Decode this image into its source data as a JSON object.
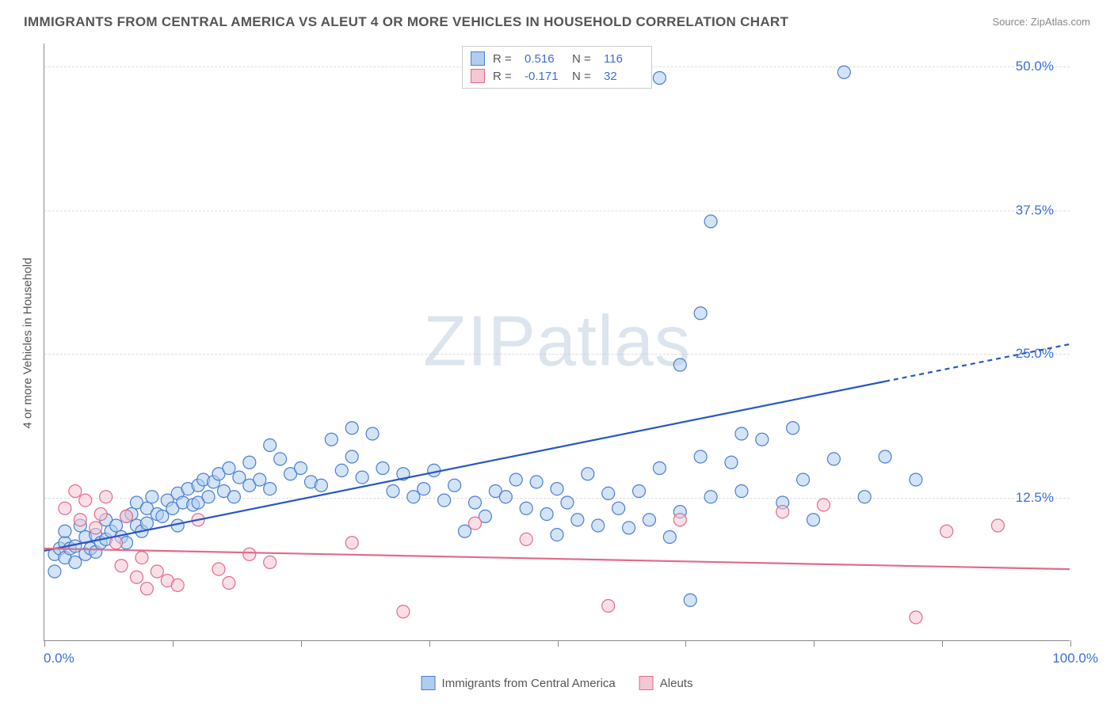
{
  "title": "IMMIGRANTS FROM CENTRAL AMERICA VS ALEUT 4 OR MORE VEHICLES IN HOUSEHOLD CORRELATION CHART",
  "source": "Source: ZipAtlas.com",
  "watermark_bold": "ZIP",
  "watermark_thin": "atlas",
  "ylabel": "4 or more Vehicles in Household",
  "chart": {
    "type": "scatter",
    "xlim": [
      0,
      100
    ],
    "ylim": [
      0,
      52
    ],
    "xtick_min_label": "0.0%",
    "xtick_max_label": "100.0%",
    "xtick_positions": [
      0,
      12.5,
      25,
      37.5,
      50,
      62.5,
      75,
      87.5,
      100
    ],
    "yticks": [
      {
        "v": 12.5,
        "label": "12.5%"
      },
      {
        "v": 25.0,
        "label": "25.0%"
      },
      {
        "v": 37.5,
        "label": "37.5%"
      },
      {
        "v": 50.0,
        "label": "50.0%"
      }
    ],
    "background_color": "#ffffff",
    "grid_color": "#dddddd",
    "series": [
      {
        "name": "Immigrants from Central America",
        "swatch_fill": "#afcdef",
        "swatch_stroke": "#4b7ecf",
        "marker_fill": "#afcdef",
        "marker_stroke": "#4b7ecf",
        "marker_fill_opacity": 0.55,
        "marker_radius": 8,
        "R": "0.516",
        "N": "116",
        "trend": {
          "x1": 0,
          "y1": 7.8,
          "x2": 100,
          "y2": 25.8,
          "solid_until_x": 82,
          "color": "#2857c5",
          "width": 2.2
        },
        "points": [
          [
            1,
            7.5
          ],
          [
            1,
            6
          ],
          [
            1.5,
            8
          ],
          [
            2,
            8.5
          ],
          [
            2,
            7.2
          ],
          [
            2,
            9.5
          ],
          [
            2.5,
            8
          ],
          [
            3,
            6.8
          ],
          [
            3,
            8.2
          ],
          [
            3.5,
            10
          ],
          [
            4,
            7.5
          ],
          [
            4,
            9
          ],
          [
            4.5,
            8
          ],
          [
            5,
            7.7
          ],
          [
            5,
            9.2
          ],
          [
            5.5,
            8.5
          ],
          [
            6,
            10.5
          ],
          [
            6,
            8.8
          ],
          [
            6.5,
            9.5
          ],
          [
            7,
            10
          ],
          [
            7.5,
            9
          ],
          [
            8,
            10.8
          ],
          [
            8,
            8.5
          ],
          [
            8.5,
            11
          ],
          [
            9,
            10
          ],
          [
            9,
            12
          ],
          [
            9.5,
            9.5
          ],
          [
            10,
            11.5
          ],
          [
            10,
            10.2
          ],
          [
            10.5,
            12.5
          ],
          [
            11,
            11
          ],
          [
            11.5,
            10.8
          ],
          [
            12,
            12.2
          ],
          [
            12.5,
            11.5
          ],
          [
            13,
            12.8
          ],
          [
            13,
            10
          ],
          [
            13.5,
            12
          ],
          [
            14,
            13.2
          ],
          [
            14.5,
            11.8
          ],
          [
            15,
            13.5
          ],
          [
            15,
            12
          ],
          [
            15.5,
            14
          ],
          [
            16,
            12.5
          ],
          [
            16.5,
            13.8
          ],
          [
            17,
            14.5
          ],
          [
            17.5,
            13
          ],
          [
            18,
            15
          ],
          [
            18.5,
            12.5
          ],
          [
            19,
            14.2
          ],
          [
            20,
            13.5
          ],
          [
            20,
            15.5
          ],
          [
            21,
            14
          ],
          [
            22,
            17
          ],
          [
            22,
            13.2
          ],
          [
            23,
            15.8
          ],
          [
            24,
            14.5
          ],
          [
            25,
            15
          ],
          [
            26,
            13.8
          ],
          [
            27,
            13.5
          ],
          [
            28,
            17.5
          ],
          [
            29,
            14.8
          ],
          [
            30,
            16
          ],
          [
            30,
            18.5
          ],
          [
            31,
            14.2
          ],
          [
            32,
            18
          ],
          [
            33,
            15
          ],
          [
            34,
            13
          ],
          [
            35,
            14.5
          ],
          [
            36,
            12.5
          ],
          [
            37,
            13.2
          ],
          [
            38,
            14.8
          ],
          [
            39,
            12.2
          ],
          [
            40,
            13.5
          ],
          [
            41,
            9.5
          ],
          [
            42,
            12
          ],
          [
            43,
            10.8
          ],
          [
            44,
            13
          ],
          [
            45,
            12.5
          ],
          [
            46,
            14
          ],
          [
            47,
            11.5
          ],
          [
            48,
            13.8
          ],
          [
            49,
            11
          ],
          [
            50,
            13.2
          ],
          [
            50,
            9.2
          ],
          [
            51,
            12
          ],
          [
            52,
            10.5
          ],
          [
            53,
            14.5
          ],
          [
            54,
            10
          ],
          [
            55,
            12.8
          ],
          [
            56,
            11.5
          ],
          [
            57,
            9.8
          ],
          [
            58,
            13
          ],
          [
            59,
            10.5
          ],
          [
            60,
            15
          ],
          [
            61,
            9
          ],
          [
            62,
            11.2
          ],
          [
            63,
            3.5
          ],
          [
            64,
            16
          ],
          [
            65,
            12.5
          ],
          [
            67,
            15.5
          ],
          [
            68,
            18
          ],
          [
            68,
            13
          ],
          [
            70,
            17.5
          ],
          [
            72,
            12
          ],
          [
            73,
            18.5
          ],
          [
            74,
            14
          ],
          [
            75,
            10.5
          ],
          [
            77,
            15.8
          ],
          [
            62,
            24
          ],
          [
            64,
            28.5
          ],
          [
            65,
            36.5
          ],
          [
            80,
            12.5
          ],
          [
            82,
            16
          ],
          [
            60,
            49
          ],
          [
            78,
            49.5
          ],
          [
            85,
            14
          ]
        ]
      },
      {
        "name": "Aleuts",
        "swatch_fill": "#f5c7d2",
        "swatch_stroke": "#e26b8a",
        "marker_fill": "#f5c7d2",
        "marker_stroke": "#e26b8a",
        "marker_fill_opacity": 0.55,
        "marker_radius": 8,
        "R": "-0.171",
        "N": "32",
        "trend": {
          "x1": 0,
          "y1": 8.0,
          "x2": 100,
          "y2": 6.2,
          "solid_until_x": 100,
          "color": "#e26b8a",
          "width": 2.2
        },
        "points": [
          [
            2,
            11.5
          ],
          [
            3,
            13
          ],
          [
            3.5,
            10.5
          ],
          [
            4,
            12.2
          ],
          [
            5,
            9.8
          ],
          [
            5.5,
            11
          ],
          [
            6,
            12.5
          ],
          [
            7,
            8.5
          ],
          [
            7.5,
            6.5
          ],
          [
            8,
            10.8
          ],
          [
            9,
            5.5
          ],
          [
            9.5,
            7.2
          ],
          [
            10,
            4.5
          ],
          [
            11,
            6
          ],
          [
            12,
            5.2
          ],
          [
            13,
            4.8
          ],
          [
            15,
            10.5
          ],
          [
            17,
            6.2
          ],
          [
            18,
            5
          ],
          [
            20,
            7.5
          ],
          [
            22,
            6.8
          ],
          [
            30,
            8.5
          ],
          [
            35,
            2.5
          ],
          [
            42,
            10.2
          ],
          [
            47,
            8.8
          ],
          [
            55,
            3
          ],
          [
            62,
            10.5
          ],
          [
            72,
            11.2
          ],
          [
            76,
            11.8
          ],
          [
            85,
            2
          ],
          [
            88,
            9.5
          ],
          [
            93,
            10
          ]
        ]
      }
    ]
  },
  "legend_top_labels": {
    "R": "R =",
    "N": "N ="
  },
  "bottom_legend": [
    {
      "swatch_fill": "#afcdef",
      "swatch_stroke": "#4b7ecf",
      "label": "Immigrants from Central America"
    },
    {
      "swatch_fill": "#f5c7d2",
      "swatch_stroke": "#e26b8a",
      "label": "Aleuts"
    }
  ]
}
